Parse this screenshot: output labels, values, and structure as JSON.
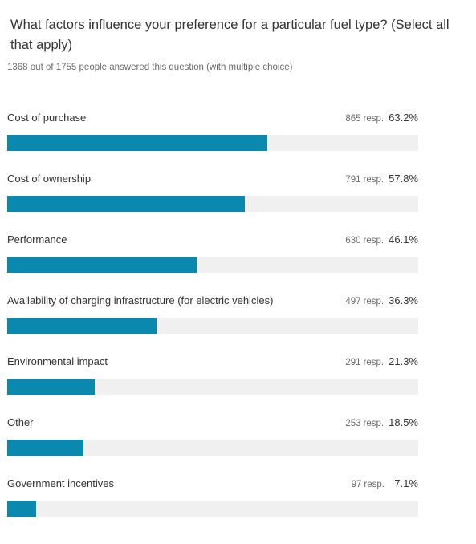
{
  "question": {
    "title": "What factors influence your preference for a particular fuel type? (Select all that apply)",
    "subtitle": "1368 out of 1755 people answered this question (with multiple choice)"
  },
  "colors": {
    "bar": "#0b88ad",
    "track": "#f0f0f0"
  },
  "chart_data": {
    "type": "bar",
    "orientation": "horizontal",
    "title": "What factors influence your preference for a particular fuel type? (Select all that apply)",
    "resp_suffix": "resp.",
    "categories": [
      "Cost of purchase",
      "Cost of ownership",
      "Performance",
      "Availability of charging infrastructure (for electric vehicles)",
      "Environmental impact",
      "Other",
      "Government incentives"
    ],
    "responses": [
      865,
      791,
      630,
      497,
      291,
      253,
      97
    ],
    "percent_labels": [
      "63.2%",
      "57.8%",
      "46.1%",
      "36.3%",
      "21.3%",
      "18.5%",
      "7.1%"
    ],
    "values": [
      63.2,
      57.8,
      46.1,
      36.3,
      21.3,
      18.5,
      7.1
    ],
    "xlim": [
      0,
      100
    ]
  }
}
